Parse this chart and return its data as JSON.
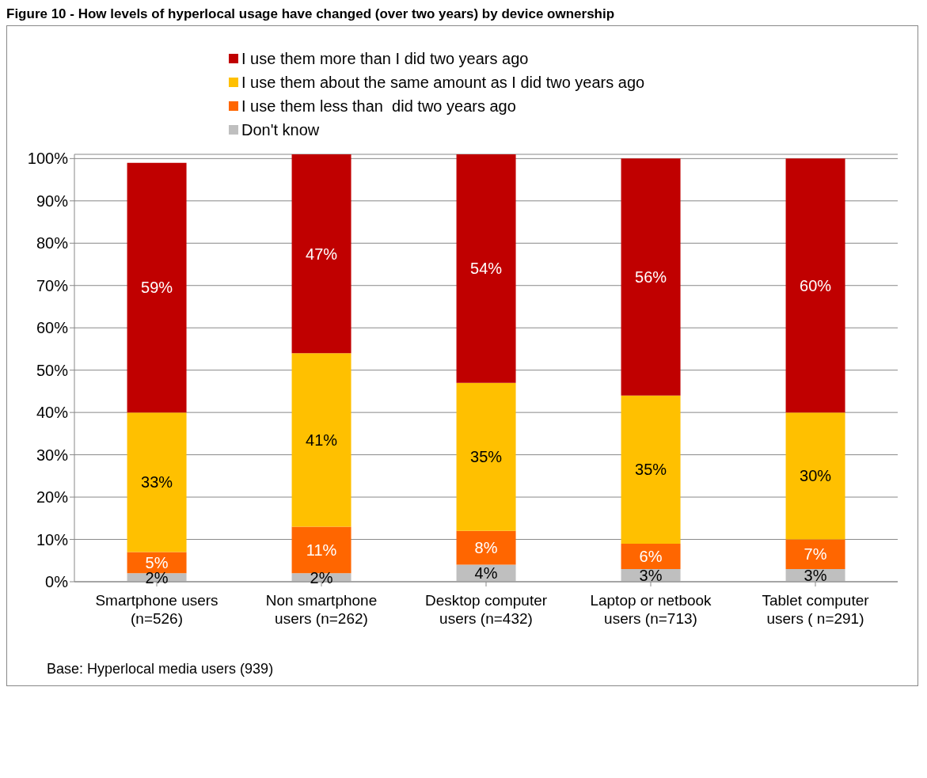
{
  "chart_data": {
    "type": "bar",
    "title": "Figure 10 - How levels of hyperlocal usage have changed (over two years) by device ownership",
    "categories": [
      "Smartphone users (n=526)",
      "Non smartphone users (n=262)",
      "Desktop computer users (n=432)",
      "Laptop or netbook users (n=713)",
      "Tablet computer users ( n=291)"
    ],
    "stacked": true,
    "series": [
      {
        "name": "Don't know",
        "color": "#bfbfbf",
        "values": [
          2,
          2,
          4,
          3,
          3
        ],
        "value_labels": [
          "2%",
          "2%",
          "4%",
          "3%",
          "3%"
        ]
      },
      {
        "name": "I use them less than  did two years ago",
        "color": "#ff6600",
        "values": [
          5,
          11,
          8,
          6,
          7
        ],
        "value_labels": [
          "5%",
          "11%",
          "8%",
          "6%",
          "7%"
        ]
      },
      {
        "name": "I use them about the same amount as I did two years ago",
        "color": "#ffc000",
        "values": [
          33,
          41,
          35,
          35,
          30
        ],
        "value_labels": [
          "33%",
          "41%",
          "35%",
          "35%",
          "30%"
        ]
      },
      {
        "name": "I use them more than I did two years ago",
        "color": "#c00000",
        "values": [
          59,
          47,
          54,
          56,
          60
        ],
        "value_labels": [
          "59%",
          "47%",
          "54%",
          "56%",
          "60%"
        ]
      }
    ],
    "ylim": [
      0,
      101
    ],
    "yticks": [
      {
        "value": 0,
        "label": "0%"
      },
      {
        "value": 10,
        "label": "10%"
      },
      {
        "value": 20,
        "label": "20%"
      },
      {
        "value": 30,
        "label": "30%"
      },
      {
        "value": 40,
        "label": "40%"
      },
      {
        "value": 50,
        "label": "50%"
      },
      {
        "value": 60,
        "label": "60%"
      },
      {
        "value": 70,
        "label": "70%"
      },
      {
        "value": 80,
        "label": "80%"
      },
      {
        "value": 90,
        "label": "90%"
      },
      {
        "value": 100,
        "label": "100%"
      }
    ],
    "grid": "y",
    "legend": "top",
    "annotations": [
      "Base: Hyperlocal media users (939)"
    ]
  }
}
